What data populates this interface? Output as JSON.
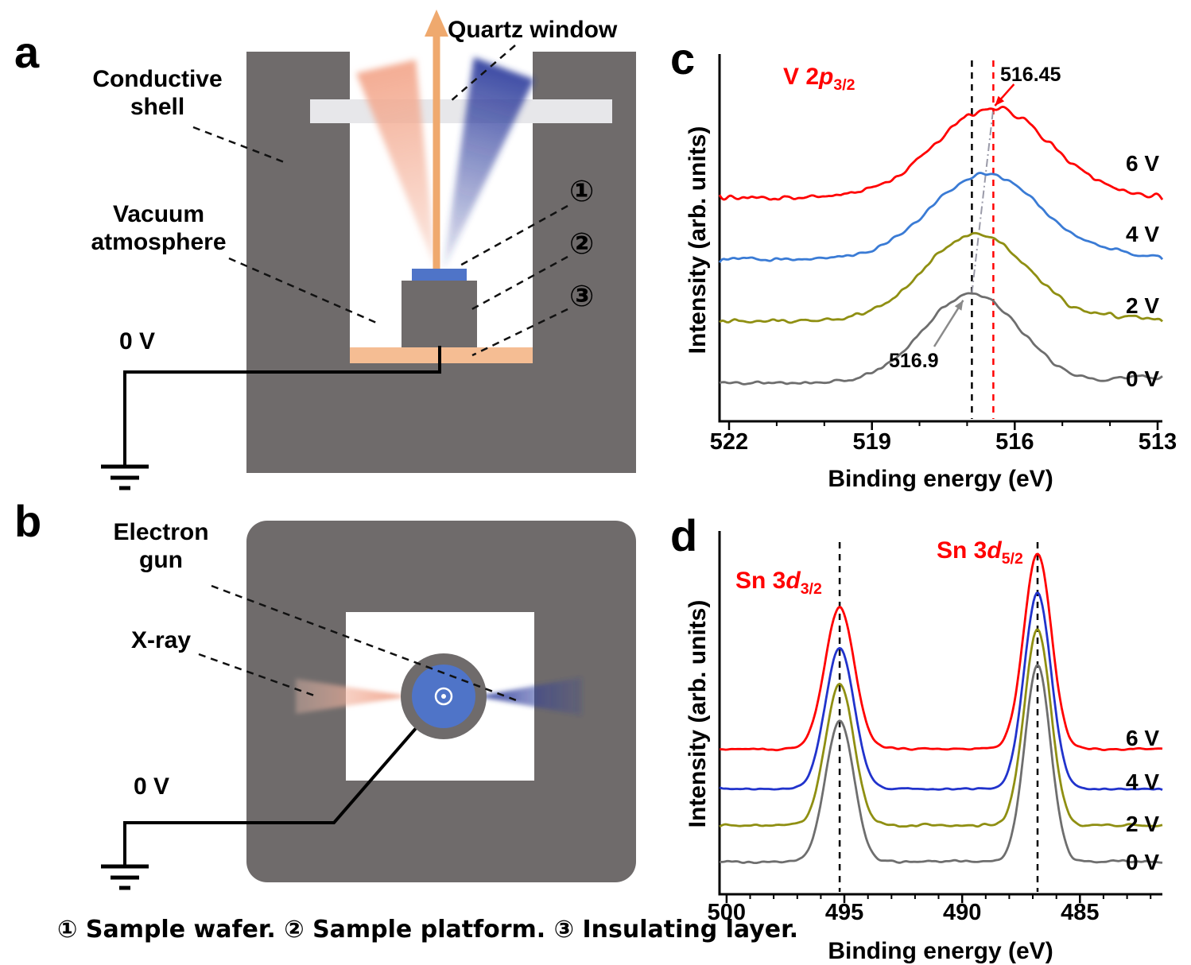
{
  "figure": {
    "panel_letters": {
      "a": "a",
      "b": "b",
      "c": "c",
      "d": "d"
    },
    "panel_a": {
      "quartz_window": "Quartz window",
      "conductive_shell": "Conductive shell",
      "vacuum_atmosphere": "Vacuum atmosphere",
      "ground_label": "0 V",
      "marker_1": "①",
      "marker_2": "②",
      "marker_3": "③"
    },
    "panel_b": {
      "electron_gun": "Electron gun",
      "xray": "X-ray",
      "ground_label": "0 V"
    },
    "caption": "① Sample wafer. ② Sample platform. ③ Insulating layer."
  },
  "colors": {
    "shell_gray": "#6f6b6b",
    "window_gray": "#e7e7ea",
    "insulator_orange": "#f5bd93",
    "wafer_blue": "#4f74c8",
    "arrow_orange": "#efa96e",
    "xray_pink": "#f3a98f",
    "electron_blue": "#2b3a9b",
    "wire_black": "#000000",
    "annotation_red": "#ff0000"
  },
  "chart_data": [
    {
      "id": "c",
      "type": "line",
      "title": "V 2p3/2 XPS spectra under bias",
      "xlabel": "Binding energy (eV)",
      "ylabel": "Intensity (arb. units)",
      "x_ticks": [
        522,
        519,
        516,
        513
      ],
      "x_range": [
        522.2,
        512.9
      ],
      "ylim": [
        0,
        4.3
      ],
      "x_axis_reversed": true,
      "grid": false,
      "legend_position": "right-inline",
      "peak_label": {
        "pre": "V 2",
        "it": "p",
        "sub": "3/2",
        "color": "#ff0000"
      },
      "annotations": {
        "shifted_peak": "516.45",
        "initial_peak": "516.9"
      },
      "dashed_lines": [
        {
          "x": 516.9,
          "color": "#000000"
        },
        {
          "x": 516.45,
          "color": "#ff0000"
        }
      ],
      "series": [
        {
          "name": "0 V",
          "color": "#6e6e6e",
          "offset": 0.45,
          "peaks": [
            {
              "center": 516.9,
              "amp": 1.05,
              "sigma": 1.0
            },
            {
              "center": 513.4,
              "amp": 0.07,
              "sigma": 0.45
            }
          ]
        },
        {
          "name": "2 V",
          "color": "#8f8f12",
          "offset": 1.17,
          "peaks": [
            {
              "center": 516.8,
              "amp": 1.03,
              "sigma": 1.08
            },
            {
              "center": 513.6,
              "amp": 0.06,
              "sigma": 0.5
            }
          ]
        },
        {
          "name": "4 V",
          "color": "#3a7bd5",
          "offset": 1.9,
          "peaks": [
            {
              "center": 516.6,
              "amp": 1.0,
              "sigma": 1.15
            },
            {
              "center": 513.8,
              "amp": 0.05,
              "sigma": 0.5
            }
          ]
        },
        {
          "name": "6 V",
          "color": "#ff0000",
          "offset": 2.62,
          "peaks": [
            {
              "center": 516.45,
              "amp": 1.05,
              "sigma": 1.2
            }
          ]
        }
      ]
    },
    {
      "id": "d",
      "type": "line",
      "title": "Sn 3d XPS spectra under bias",
      "xlabel": "Binding energy (eV)",
      "ylabel": "Intensity (arb. units)",
      "x_ticks": [
        500,
        495,
        490,
        485
      ],
      "x_range": [
        500.3,
        481.5
      ],
      "ylim": [
        0,
        5.0
      ],
      "x_axis_reversed": true,
      "grid": false,
      "legend_position": "right-inline",
      "peak_labels": [
        {
          "pre": "Sn 3",
          "it": "d",
          "sub": "3/2",
          "color": "#ff0000"
        },
        {
          "pre": "Sn 3",
          "it": "d",
          "sub": "5/2",
          "color": "#ff0000"
        }
      ],
      "dashed_lines": [
        {
          "x": 495.2,
          "color": "#000000"
        },
        {
          "x": 486.8,
          "color": "#000000"
        }
      ],
      "series": [
        {
          "name": "0 V",
          "color": "#6e6e6e",
          "offset": 0.45,
          "peaks": [
            {
              "center": 495.2,
              "amp": 1.95,
              "sigma": 0.6
            },
            {
              "center": 486.8,
              "amp": 2.7,
              "sigma": 0.55
            }
          ]
        },
        {
          "name": "2 V",
          "color": "#8f8f12",
          "offset": 0.95,
          "peaks": [
            {
              "center": 495.2,
              "amp": 1.95,
              "sigma": 0.6
            },
            {
              "center": 486.8,
              "amp": 2.7,
              "sigma": 0.56
            }
          ]
        },
        {
          "name": "4 V",
          "color": "#2133cc",
          "offset": 1.45,
          "peaks": [
            {
              "center": 495.2,
              "amp": 1.95,
              "sigma": 0.61
            },
            {
              "center": 486.8,
              "amp": 2.7,
              "sigma": 0.57
            }
          ]
        },
        {
          "name": "6 V",
          "color": "#ff0000",
          "offset": 2.0,
          "peaks": [
            {
              "center": 495.2,
              "amp": 1.95,
              "sigma": 0.62
            },
            {
              "center": 486.8,
              "amp": 2.7,
              "sigma": 0.58
            }
          ]
        }
      ]
    }
  ]
}
